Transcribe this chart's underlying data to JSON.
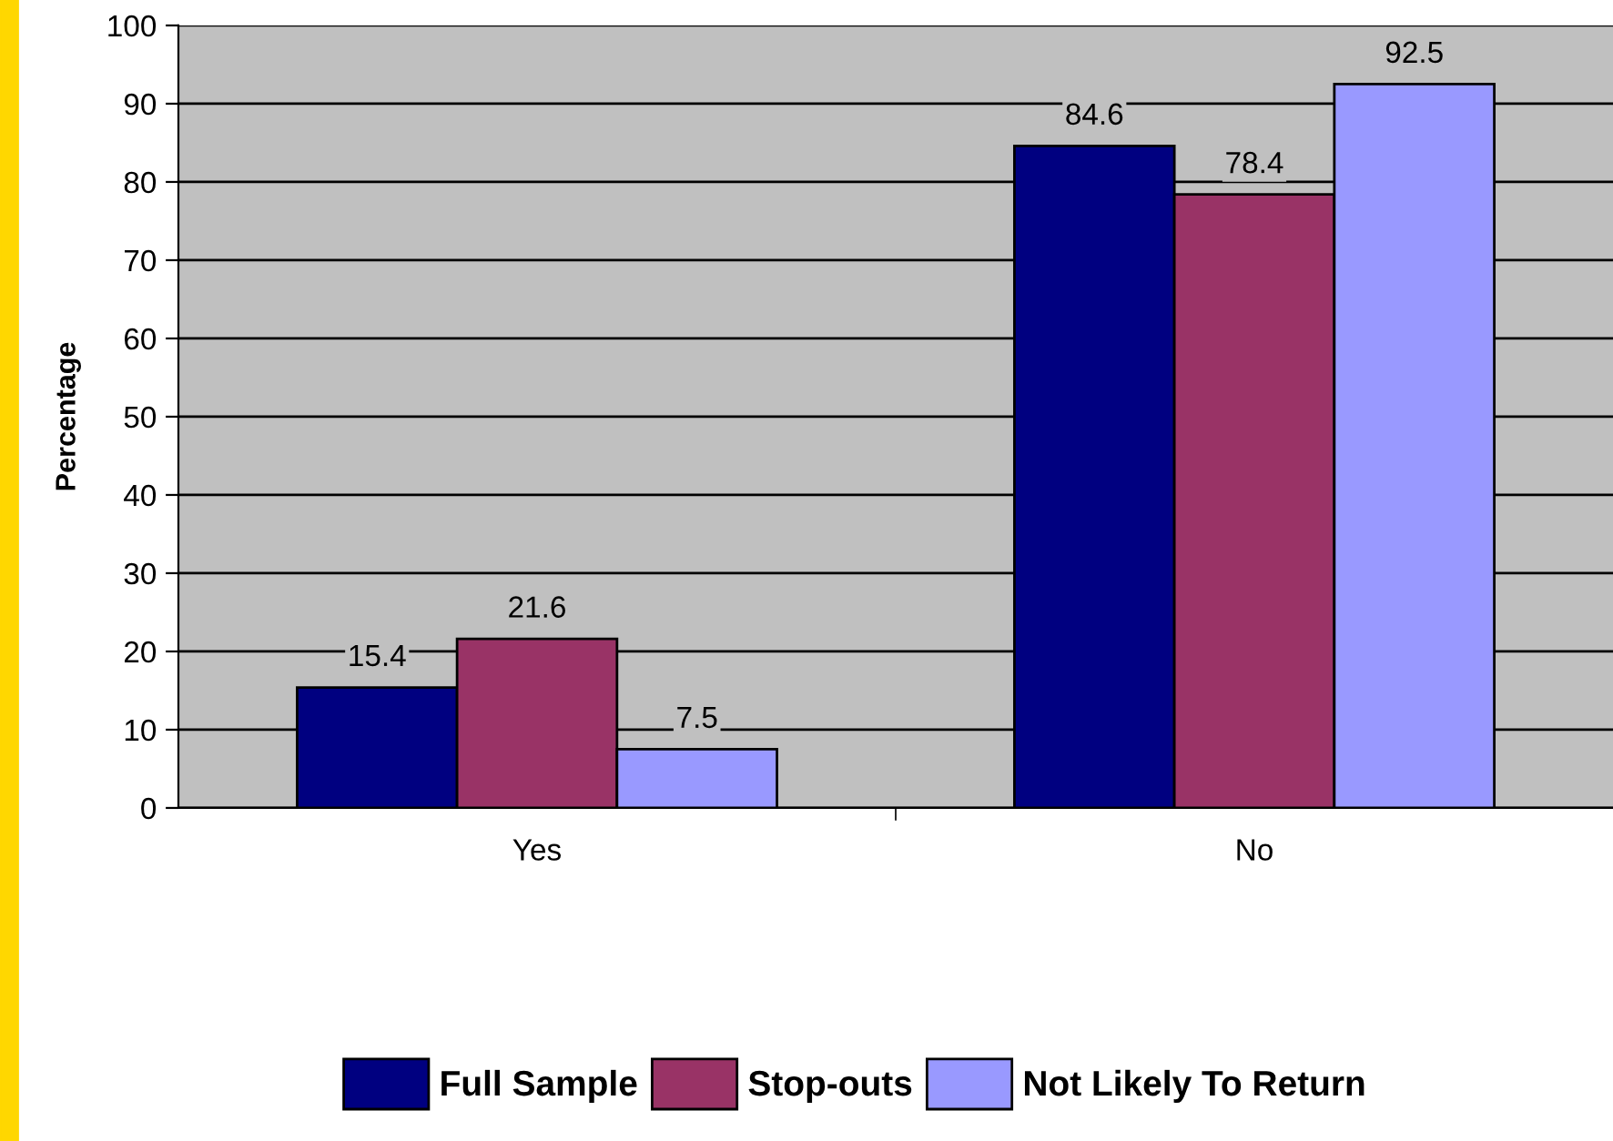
{
  "chart_data": {
    "type": "bar",
    "ylabel": "Percentage",
    "categories": [
      "Yes",
      "No"
    ],
    "series": [
      {
        "name": "Full Sample",
        "color": "#000080",
        "values": [
          15.4,
          84.6
        ]
      },
      {
        "name": "Stop-outs",
        "color": "#993366",
        "values": [
          21.6,
          78.4
        ]
      },
      {
        "name": "Not Likely To Return",
        "color": "#9999ff",
        "values": [
          7.5,
          92.5
        ]
      }
    ],
    "ylim": [
      0,
      100
    ],
    "yticks": [
      0,
      10,
      20,
      30,
      40,
      50,
      60,
      70,
      80,
      90,
      100
    ],
    "grid": "y",
    "legend": "bottom",
    "data_labels": true
  }
}
